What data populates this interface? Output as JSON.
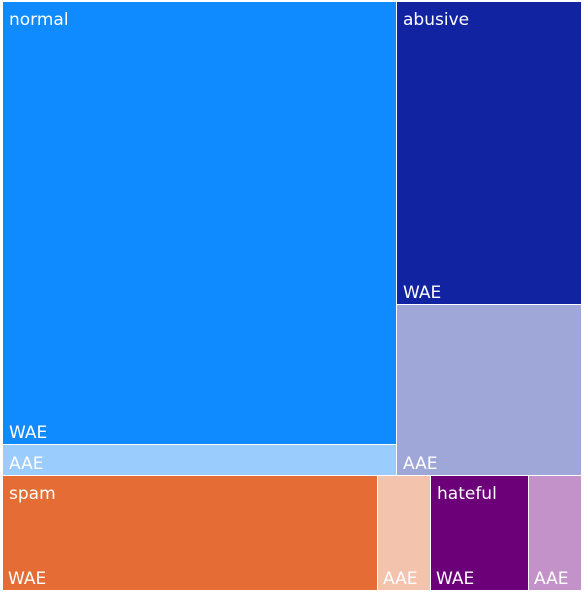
{
  "chart_data": {
    "type": "treemap",
    "title": "",
    "groups": [
      {
        "name": "normal",
        "color": "#0f8bff",
        "children": [
          {
            "name": "WAE",
            "value": 171,
            "color": "#0f8bff"
          },
          {
            "name": "AAE",
            "value": 12,
            "color": "#9bccfe"
          }
        ]
      },
      {
        "name": "abusive",
        "color": "#1123a0",
        "children": [
          {
            "name": "WAE",
            "value": 55,
            "color": "#1123a0"
          },
          {
            "name": "AAE",
            "value": 31,
            "color": "#9fa7d9"
          }
        ]
      },
      {
        "name": "spam",
        "color": "#e66c35",
        "children": [
          {
            "name": "WAE",
            "value": 42,
            "color": "#e66c35"
          },
          {
            "name": "AAE",
            "value": 6,
            "color": "#f4c3ae"
          }
        ]
      },
      {
        "name": "hateful",
        "color": "#6b0078",
        "children": [
          {
            "name": "WAE",
            "value": 11,
            "color": "#6b0078"
          },
          {
            "name": "AAE",
            "value": 6,
            "color": "#c392c8"
          }
        ]
      }
    ]
  }
}
